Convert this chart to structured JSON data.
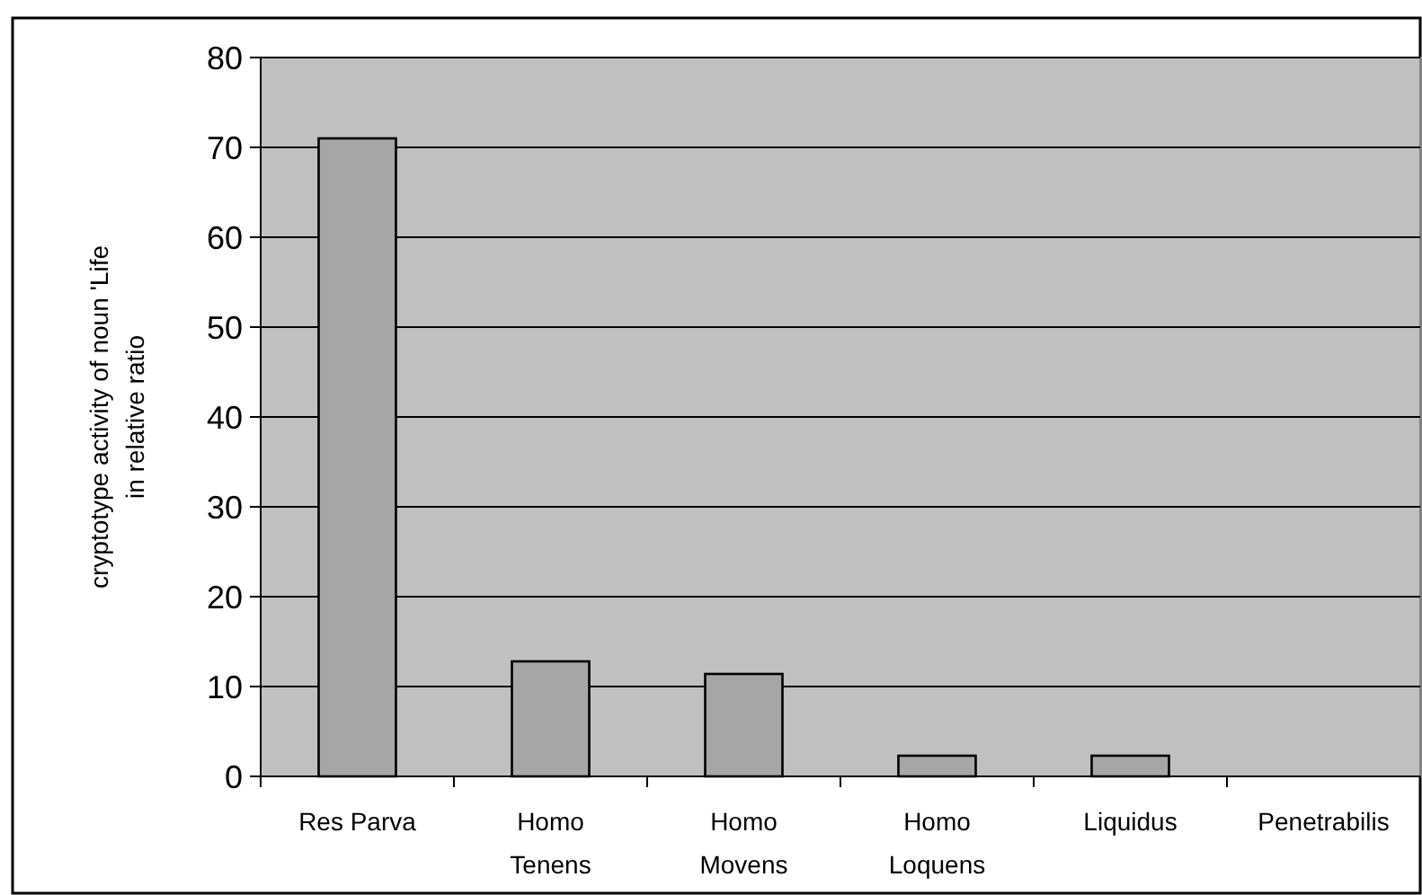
{
  "chart_data": {
    "type": "bar",
    "ylabel": "cryptotype activity of noun 'Life\nin relative ratio",
    "categories": [
      "Res Parva",
      "Homo Tenens",
      "Homo Movens",
      "Homo Loquens",
      "Liquidus",
      "Penetrabilis"
    ],
    "values": [
      71,
      12.8,
      11.4,
      2.3,
      2.3,
      0
    ],
    "color": "#a6a6a6",
    "ylim": [
      0,
      80
    ],
    "yticks": [
      0,
      10,
      20,
      30,
      40,
      50,
      60,
      70,
      80
    ],
    "grid": "y"
  }
}
